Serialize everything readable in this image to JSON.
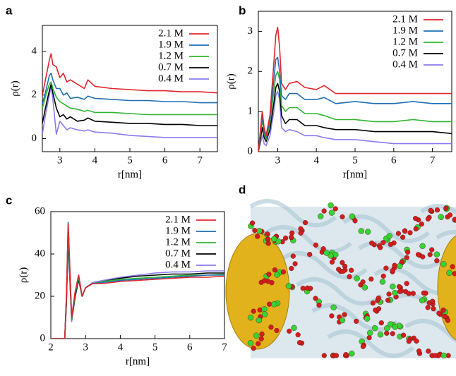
{
  "chart_data": [
    {
      "type": "line",
      "panel": "a",
      "ylabel": "ρ(r)",
      "xlabel": "r[nm]",
      "xlim": [
        2.5,
        7.5
      ],
      "xticks": [
        3,
        4,
        5,
        6,
        7
      ],
      "ylim": [
        -0.6,
        5.2
      ],
      "yticks": [
        0,
        2,
        4
      ],
      "x": [
        2.5,
        2.6,
        2.7,
        2.75,
        2.8,
        2.9,
        3.0,
        3.1,
        3.2,
        3.3,
        3.5,
        3.7,
        3.8,
        4.0,
        4.5,
        5,
        5.5,
        6,
        6.5,
        7,
        7.5
      ],
      "series": [
        {
          "name": "2.1 M",
          "color": "#e3242b",
          "values": [
            2.0,
            2.8,
            3.6,
            3.9,
            3.4,
            3.3,
            2.8,
            3.0,
            2.6,
            2.7,
            2.5,
            2.3,
            2.7,
            2.4,
            2.3,
            2.25,
            2.2,
            2.2,
            2.15,
            2.15,
            2.1
          ]
        },
        {
          "name": "1.9 M",
          "color": "#1f6fb5",
          "values": [
            1.6,
            2.2,
            2.9,
            3.0,
            2.7,
            2.3,
            2.3,
            2.0,
            2.1,
            1.85,
            1.9,
            1.8,
            1.95,
            1.85,
            1.8,
            1.75,
            1.75,
            1.7,
            1.7,
            1.65,
            1.65
          ]
        },
        {
          "name": "1.2 M",
          "color": "#2fb52f",
          "values": [
            1.4,
            2.0,
            2.5,
            2.6,
            2.3,
            1.9,
            1.7,
            1.6,
            1.5,
            1.4,
            1.35,
            1.25,
            1.3,
            1.2,
            1.2,
            1.15,
            1.1,
            1.1,
            1.1,
            1.1,
            1.1
          ]
        },
        {
          "name": "0.7 M",
          "color": "#000000",
          "values": [
            0.7,
            1.5,
            2.2,
            2.5,
            2.1,
            1.4,
            1.0,
            1.1,
            0.9,
            1.0,
            0.8,
            0.85,
            0.95,
            0.8,
            0.75,
            0.7,
            0.7,
            0.65,
            0.65,
            0.6,
            0.6
          ]
        },
        {
          "name": "0.4 M",
          "color": "#8a7cf0",
          "values": [
            0.2,
            1.2,
            2.0,
            2.4,
            1.8,
            0.2,
            0.8,
            0.6,
            0.4,
            0.5,
            0.4,
            0.35,
            0.4,
            0.3,
            0.25,
            0.15,
            0.1,
            0.05,
            0.05,
            0.05,
            0.05
          ]
        }
      ]
    },
    {
      "type": "line",
      "panel": "b",
      "ylabel": "ρ(r)",
      "xlabel": "r[nm]",
      "xlim": [
        2.5,
        7.5
      ],
      "xticks": [
        3,
        4,
        5,
        6,
        7
      ],
      "ylim": [
        0,
        3.5
      ],
      "yticks": [
        0,
        1,
        2,
        3
      ],
      "x": [
        2.5,
        2.6,
        2.65,
        2.7,
        2.8,
        2.9,
        2.95,
        3.0,
        3.05,
        3.1,
        3.2,
        3.3,
        3.5,
        3.7,
        4.0,
        4.2,
        4.5,
        5,
        5.5,
        6,
        6.5,
        7,
        7.5
      ],
      "series": [
        {
          "name": "2.1 M",
          "color": "#e3242b",
          "values": [
            0,
            1.0,
            0.6,
            0.4,
            0.9,
            2.2,
            2.9,
            3.1,
            2.6,
            1.7,
            1.55,
            1.7,
            1.75,
            1.6,
            1.55,
            1.65,
            1.45,
            1.45,
            1.45,
            1.45,
            1.45,
            1.45,
            1.45
          ]
        },
        {
          "name": "1.9 M",
          "color": "#1f6fb5",
          "values": [
            0,
            0.9,
            0.5,
            0.35,
            0.8,
            1.8,
            2.3,
            2.35,
            2.0,
            1.4,
            1.3,
            1.45,
            1.45,
            1.3,
            1.3,
            1.35,
            1.2,
            1.25,
            1.2,
            1.2,
            1.25,
            1.2,
            1.2
          ]
        },
        {
          "name": "1.2 M",
          "color": "#2fb52f",
          "values": [
            0,
            0.8,
            0.45,
            0.3,
            0.7,
            1.5,
            1.9,
            2.0,
            1.8,
            1.15,
            1.0,
            1.1,
            1.1,
            0.95,
            0.95,
            0.9,
            0.8,
            0.8,
            0.75,
            0.75,
            0.8,
            0.75,
            0.75
          ]
        },
        {
          "name": "0.7 M",
          "color": "#000000",
          "values": [
            0,
            0.6,
            0.35,
            0.25,
            0.55,
            1.2,
            1.6,
            1.7,
            1.5,
            0.9,
            0.7,
            0.8,
            0.8,
            0.65,
            0.65,
            0.6,
            0.55,
            0.55,
            0.5,
            0.5,
            0.5,
            0.5,
            0.45
          ]
        },
        {
          "name": "0.4 M",
          "color": "#8a7cf0",
          "values": [
            0,
            0.4,
            0.2,
            0.15,
            0.4,
            1.0,
            1.4,
            1.5,
            1.3,
            0.6,
            0.5,
            0.55,
            0.5,
            0.4,
            0.4,
            0.35,
            0.3,
            0.3,
            0.25,
            0.2,
            0.2,
            0.2,
            0.2
          ]
        }
      ]
    },
    {
      "type": "line",
      "panel": "c",
      "ylabel": "ρ(r)",
      "xlabel": "r[nm]",
      "xlim": [
        2,
        7
      ],
      "xticks": [
        2,
        3,
        4,
        5,
        6,
        7
      ],
      "ylim": [
        0,
        60
      ],
      "yticks": [
        0,
        20,
        40,
        60
      ],
      "x": [
        2,
        2.4,
        2.45,
        2.5,
        2.6,
        2.7,
        2.8,
        2.9,
        3.0,
        3.2,
        3.5,
        4,
        4.5,
        5,
        5.5,
        6,
        6.5,
        7
      ],
      "series": [
        {
          "name": "2.1 M",
          "color": "#e3242b",
          "values": [
            0,
            0,
            20,
            54,
            10,
            22,
            30,
            20,
            24,
            26,
            26,
            27,
            27.5,
            28,
            28.5,
            29,
            29,
            29.5
          ]
        },
        {
          "name": "1.9 M",
          "color": "#1f6fb5",
          "values": [
            0,
            0,
            20,
            55,
            10,
            22,
            30,
            20,
            24,
            26,
            26.5,
            27.5,
            28,
            28.5,
            29,
            29.5,
            30,
            30
          ]
        },
        {
          "name": "1.2 M",
          "color": "#2fb52f",
          "values": [
            0,
            0,
            18,
            50,
            9,
            21,
            29,
            20,
            24,
            26,
            27,
            28,
            28.5,
            29,
            29.5,
            30,
            30,
            30.5
          ]
        },
        {
          "name": "0.7 M",
          "color": "#000000",
          "values": [
            0,
            0,
            17,
            48,
            9,
            20,
            28,
            20,
            24,
            26,
            27,
            28.5,
            29.5,
            30,
            30.5,
            30.5,
            31,
            31
          ]
        },
        {
          "name": "0.4 M",
          "color": "#8a7cf0",
          "values": [
            0,
            0,
            16,
            45,
            8,
            19,
            28,
            20,
            24,
            26.5,
            27.5,
            29,
            30,
            31,
            31.5,
            31.5,
            32,
            32
          ]
        }
      ]
    },
    {
      "type": "image",
      "panel": "d"
    }
  ]
}
